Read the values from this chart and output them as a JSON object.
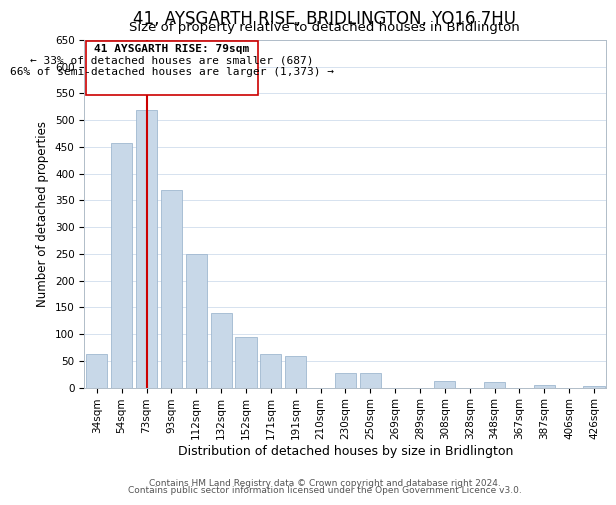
{
  "title": "41, AYSGARTH RISE, BRIDLINGTON, YO16 7HU",
  "subtitle": "Size of property relative to detached houses in Bridlington",
  "xlabel": "Distribution of detached houses by size in Bridlington",
  "ylabel": "Number of detached properties",
  "bar_labels": [
    "34sqm",
    "54sqm",
    "73sqm",
    "93sqm",
    "112sqm",
    "132sqm",
    "152sqm",
    "171sqm",
    "191sqm",
    "210sqm",
    "230sqm",
    "250sqm",
    "269sqm",
    "289sqm",
    "308sqm",
    "328sqm",
    "348sqm",
    "367sqm",
    "387sqm",
    "406sqm",
    "426sqm"
  ],
  "bar_values": [
    62,
    457,
    519,
    370,
    249,
    140,
    95,
    62,
    58,
    0,
    28,
    28,
    0,
    0,
    12,
    0,
    10,
    0,
    5,
    0,
    3
  ],
  "bar_color": "#c8d8e8",
  "bar_edge_color": "#a0b8d0",
  "ylim": [
    0,
    650
  ],
  "yticks": [
    0,
    50,
    100,
    150,
    200,
    250,
    300,
    350,
    400,
    450,
    500,
    550,
    600,
    650
  ],
  "property_line_color": "#cc0000",
  "annotation_title": "41 AYSGARTH RISE: 79sqm",
  "annotation_line1": "← 33% of detached houses are smaller (687)",
  "annotation_line2": "66% of semi-detached houses are larger (1,373) →",
  "annotation_box_color": "#ffffff",
  "annotation_box_edge": "#cc0000",
  "footer_line1": "Contains HM Land Registry data © Crown copyright and database right 2024.",
  "footer_line2": "Contains public sector information licensed under the Open Government Licence v3.0.",
  "background_color": "#ffffff",
  "grid_color": "#d0dded",
  "title_fontsize": 12,
  "subtitle_fontsize": 9.5,
  "xlabel_fontsize": 9,
  "ylabel_fontsize": 8.5,
  "tick_fontsize": 7.5,
  "annotation_fontsize": 8,
  "footer_fontsize": 6.5
}
